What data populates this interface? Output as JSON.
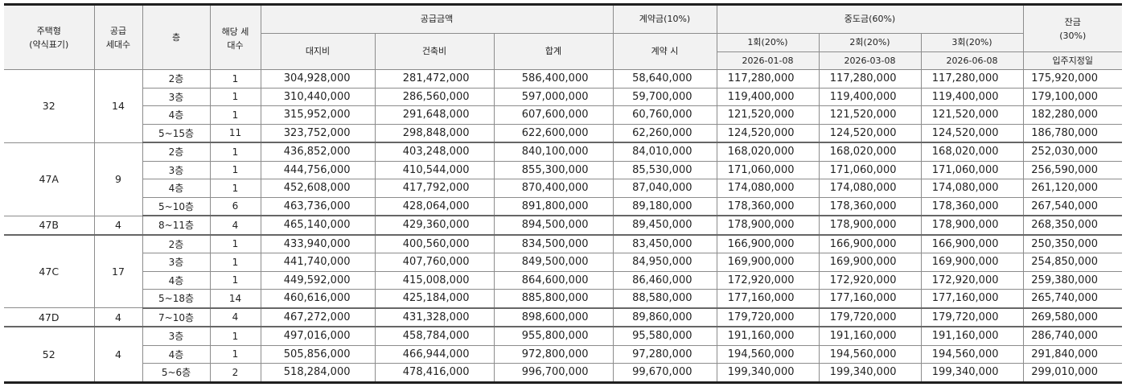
{
  "header": {
    "type_line1": "주택형",
    "type_line2": "(약식표기)",
    "supply_line1": "공급",
    "supply_line2": "세대수",
    "floor": "층",
    "units_line1": "해당 세",
    "units_line2": "대수",
    "supply_amount": "공급금액",
    "land": "대지비",
    "building": "건축비",
    "total": "합계",
    "deposit": "계약금(10%)",
    "deposit_sub": "계약 시",
    "interim": "중도금(60%)",
    "interim_cols": [
      {
        "label": "1회(20%)",
        "date": "2026-01-08"
      },
      {
        "label": "2회(20%)",
        "date": "2026-03-08"
      },
      {
        "label": "3회(20%)",
        "date": "2026-06-08"
      }
    ],
    "balance_line1": "잔금",
    "balance_line2": "(30%)",
    "balance_sub": "입주지정일"
  },
  "groups": [
    {
      "type": "32",
      "supply": "14",
      "rows": [
        {
          "floor": "2층",
          "units": "1",
          "land": "304,928,000",
          "building": "281,472,000",
          "total": "586,400,000",
          "deposit": "58,640,000",
          "i1": "117,280,000",
          "i2": "117,280,000",
          "i3": "117,280,000",
          "balance": "175,920,000"
        },
        {
          "floor": "3층",
          "units": "1",
          "land": "310,440,000",
          "building": "286,560,000",
          "total": "597,000,000",
          "deposit": "59,700,000",
          "i1": "119,400,000",
          "i2": "119,400,000",
          "i3": "119,400,000",
          "balance": "179,100,000"
        },
        {
          "floor": "4층",
          "units": "1",
          "land": "315,952,000",
          "building": "291,648,000",
          "total": "607,600,000",
          "deposit": "60,760,000",
          "i1": "121,520,000",
          "i2": "121,520,000",
          "i3": "121,520,000",
          "balance": "182,280,000"
        },
        {
          "floor": "5~15층",
          "units": "11",
          "land": "323,752,000",
          "building": "298,848,000",
          "total": "622,600,000",
          "deposit": "62,260,000",
          "i1": "124,520,000",
          "i2": "124,520,000",
          "i3": "124,520,000",
          "balance": "186,780,000"
        }
      ]
    },
    {
      "type": "47A",
      "supply": "9",
      "rows": [
        {
          "floor": "2층",
          "units": "1",
          "land": "436,852,000",
          "building": "403,248,000",
          "total": "840,100,000",
          "deposit": "84,010,000",
          "i1": "168,020,000",
          "i2": "168,020,000",
          "i3": "168,020,000",
          "balance": "252,030,000"
        },
        {
          "floor": "3층",
          "units": "1",
          "land": "444,756,000",
          "building": "410,544,000",
          "total": "855,300,000",
          "deposit": "85,530,000",
          "i1": "171,060,000",
          "i2": "171,060,000",
          "i3": "171,060,000",
          "balance": "256,590,000"
        },
        {
          "floor": "4층",
          "units": "1",
          "land": "452,608,000",
          "building": "417,792,000",
          "total": "870,400,000",
          "deposit": "87,040,000",
          "i1": "174,080,000",
          "i2": "174,080,000",
          "i3": "174,080,000",
          "balance": "261,120,000"
        },
        {
          "floor": "5~10층",
          "units": "6",
          "land": "463,736,000",
          "building": "428,064,000",
          "total": "891,800,000",
          "deposit": "89,180,000",
          "i1": "178,360,000",
          "i2": "178,360,000",
          "i3": "178,360,000",
          "balance": "267,540,000"
        }
      ]
    },
    {
      "type": "47B",
      "supply": "4",
      "rows": [
        {
          "floor": "8~11층",
          "units": "4",
          "land": "465,140,000",
          "building": "429,360,000",
          "total": "894,500,000",
          "deposit": "89,450,000",
          "i1": "178,900,000",
          "i2": "178,900,000",
          "i3": "178,900,000",
          "balance": "268,350,000"
        }
      ]
    },
    {
      "type": "47C",
      "supply": "17",
      "rows": [
        {
          "floor": "2층",
          "units": "1",
          "land": "433,940,000",
          "building": "400,560,000",
          "total": "834,500,000",
          "deposit": "83,450,000",
          "i1": "166,900,000",
          "i2": "166,900,000",
          "i3": "166,900,000",
          "balance": "250,350,000"
        },
        {
          "floor": "3층",
          "units": "1",
          "land": "441,740,000",
          "building": "407,760,000",
          "total": "849,500,000",
          "deposit": "84,950,000",
          "i1": "169,900,000",
          "i2": "169,900,000",
          "i3": "169,900,000",
          "balance": "254,850,000"
        },
        {
          "floor": "4층",
          "units": "1",
          "land": "449,592,000",
          "building": "415,008,000",
          "total": "864,600,000",
          "deposit": "86,460,000",
          "i1": "172,920,000",
          "i2": "172,920,000",
          "i3": "172,920,000",
          "balance": "259,380,000"
        },
        {
          "floor": "5~18층",
          "units": "14",
          "land": "460,616,000",
          "building": "425,184,000",
          "total": "885,800,000",
          "deposit": "88,580,000",
          "i1": "177,160,000",
          "i2": "177,160,000",
          "i3": "177,160,000",
          "balance": "265,740,000"
        }
      ]
    },
    {
      "type": "47D",
      "supply": "4",
      "rows": [
        {
          "floor": "7~10층",
          "units": "4",
          "land": "467,272,000",
          "building": "431,328,000",
          "total": "898,600,000",
          "deposit": "89,860,000",
          "i1": "179,720,000",
          "i2": "179,720,000",
          "i3": "179,720,000",
          "balance": "269,580,000"
        }
      ]
    },
    {
      "type": "52",
      "supply": "4",
      "rows": [
        {
          "floor": "3층",
          "units": "1",
          "land": "497,016,000",
          "building": "458,784,000",
          "total": "955,800,000",
          "deposit": "95,580,000",
          "i1": "191,160,000",
          "i2": "191,160,000",
          "i3": "191,160,000",
          "balance": "286,740,000"
        },
        {
          "floor": "4층",
          "units": "1",
          "land": "505,856,000",
          "building": "466,944,000",
          "total": "972,800,000",
          "deposit": "97,280,000",
          "i1": "194,560,000",
          "i2": "194,560,000",
          "i3": "194,560,000",
          "balance": "291,840,000"
        },
        {
          "floor": "5~6층",
          "units": "2",
          "land": "518,284,000",
          "building": "478,416,000",
          "total": "996,700,000",
          "deposit": "99,670,000",
          "i1": "199,340,000",
          "i2": "199,340,000",
          "i3": "199,340,000",
          "balance": "299,010,000"
        }
      ]
    }
  ]
}
